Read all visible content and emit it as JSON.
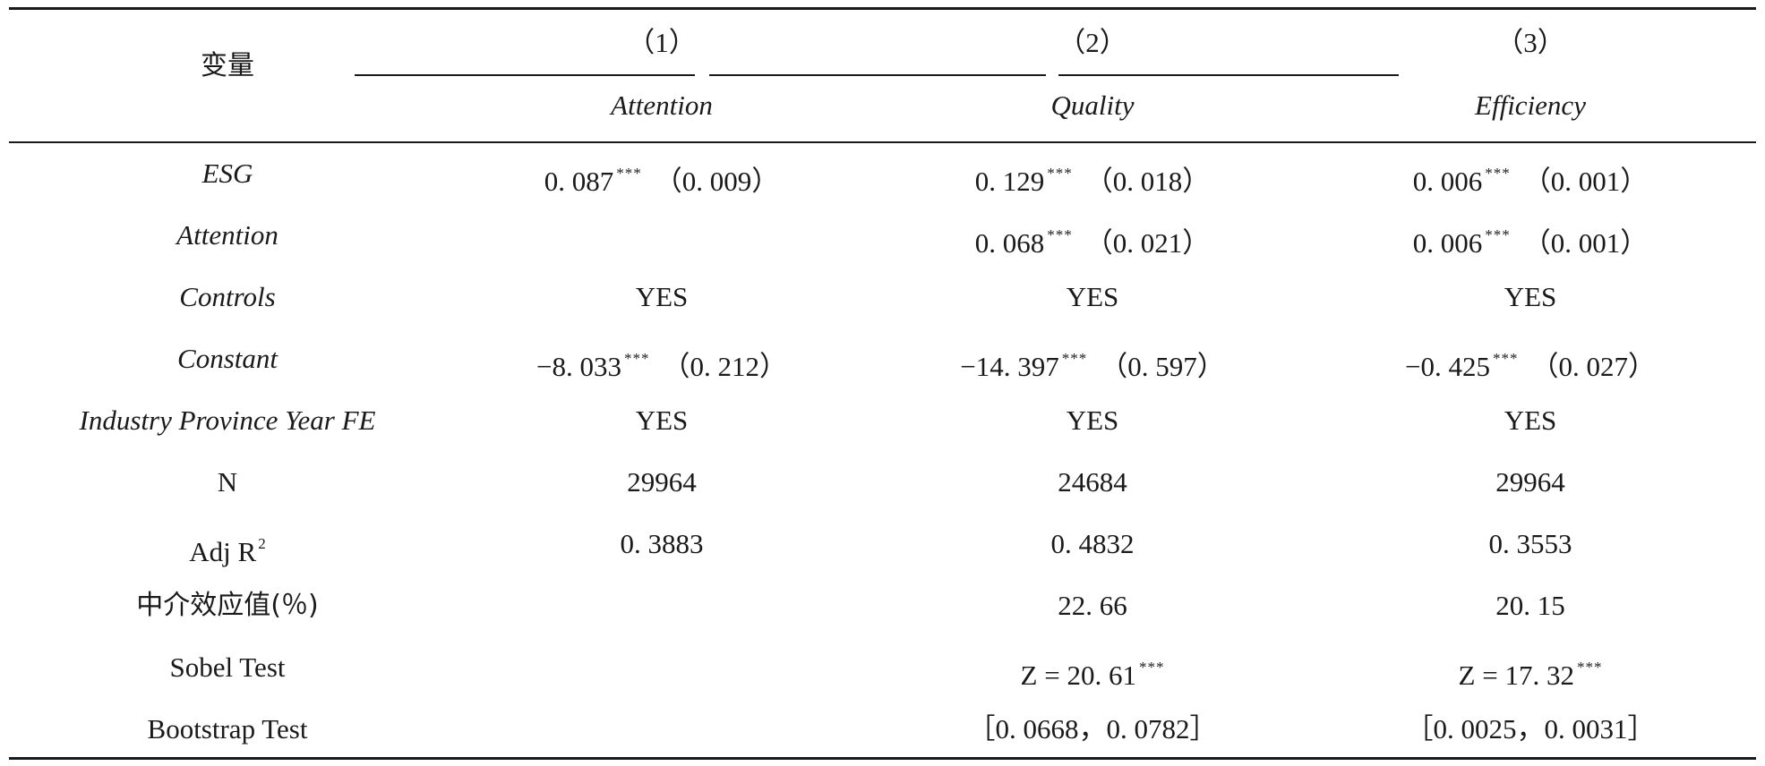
{
  "header": {
    "variable_label": "变量",
    "columns": [
      {
        "number": "（1）",
        "dependent": "Attention"
      },
      {
        "number": "（2）",
        "dependent": "Quality"
      },
      {
        "number": "（3）",
        "dependent": "Efficiency"
      }
    ]
  },
  "rows": {
    "esg": {
      "label": "ESG",
      "c1": {
        "coef": "0. 087",
        "stars": "***",
        "se": "（0. 009）"
      },
      "c2": {
        "coef": "0. 129",
        "stars": "***",
        "se": "（0. 018）"
      },
      "c3": {
        "coef": "0. 006",
        "stars": "***",
        "se": "（0. 001）"
      }
    },
    "attention": {
      "label": "Attention",
      "c2": {
        "coef": "0. 068",
        "stars": "***",
        "se": "（0. 021）"
      },
      "c3": {
        "coef": "0. 006",
        "stars": "***",
        "se": "（0. 001）"
      }
    },
    "controls": {
      "label": "Controls",
      "c1": "YES",
      "c2": "YES",
      "c3": "YES"
    },
    "constant": {
      "label": "Constant",
      "c1": {
        "coef": "−8. 033",
        "stars": "***",
        "se": "（0. 212）"
      },
      "c2": {
        "coef": "−14. 397",
        "stars": "***",
        "se": "（0. 597）"
      },
      "c3": {
        "coef": "−0. 425",
        "stars": "***",
        "se": "（0. 027）"
      }
    },
    "fe": {
      "label": "Industry Province Year FE",
      "c1": "YES",
      "c2": "YES",
      "c3": "YES"
    },
    "n": {
      "label": "N",
      "c1": "29964",
      "c2": "24684",
      "c3": "29964"
    },
    "adjr2": {
      "label": "Adj R",
      "label_sup": "2",
      "c1": "0. 3883",
      "c2": "0. 4832",
      "c3": "0. 3553"
    },
    "mediation": {
      "label": "中介效应值(％)",
      "c2": "22. 66",
      "c3": "20. 15"
    },
    "sobel": {
      "label": "Sobel Test",
      "c2": {
        "value": "Z = 20. 61",
        "stars": "***"
      },
      "c3": {
        "value": "Z = 17. 32",
        "stars": "***"
      }
    },
    "bootstrap": {
      "label": "Bootstrap Test",
      "c2": "［0. 0668，0. 0782］",
      "c3": "［0. 0025，0. 0031］"
    }
  }
}
